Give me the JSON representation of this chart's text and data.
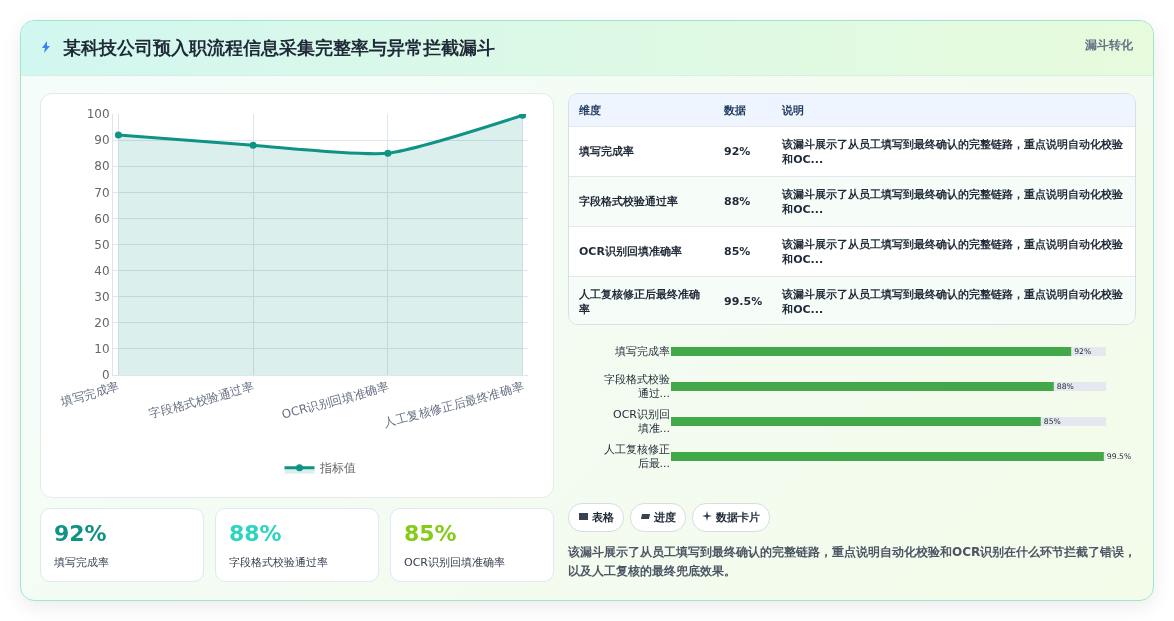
{
  "chart_data": [
    {
      "type": "area",
      "title": "某科技公司预入职流程信息采集完整率与异常拦截漏斗",
      "annotations": [
        "漏斗转化"
      ],
      "categories": [
        "填写完成率",
        "字段格式校验通过率",
        "OCR识别回填准确率",
        "人工复核修正后最终准确率"
      ],
      "series": [
        {
          "name": "指标值",
          "color": "#0e9384",
          "values": [
            92,
            88,
            85,
            99.5
          ]
        }
      ],
      "ylim": [
        0,
        100
      ],
      "yticks": [
        0,
        10,
        20,
        30,
        40,
        50,
        60,
        70,
        80,
        90,
        100
      ],
      "grid": true,
      "legend": "bottom",
      "marker": "circle",
      "line_style": "solid"
    },
    {
      "type": "other",
      "annotations": [
        "维度",
        "数据",
        "说明",
        "该漏斗展示了从员工填写到最终确认的完整链路，重点说明自动化校验和OC...",
        "该漏斗展示了从员工填写到最终确认的完整链路，重点说明自动化校验和OC...",
        "该漏斗展示了从员工填写到最终确认的完整链路，重点说明自动化校验和OC...",
        "该漏斗展示了从员工填写到最终确认的完整链路，重点说明自动化校验和OC..."
      ],
      "categories": [
        "填写完成率",
        "字段格式校验通过率",
        "OCR识别回填准确率",
        "人工复核修正后最终准确率"
      ],
      "value_labels": [
        "92%",
        "88%",
        "85%",
        "99.5%"
      ]
    },
    {
      "type": "bar",
      "orientation": "horizontal",
      "categories": [
        "填写完成率",
        "字段格式校验通过...",
        "OCR识别回填准...",
        "人工复核修正后最..."
      ],
      "values": [
        92,
        88,
        85,
        99.5
      ],
      "value_labels": [
        "92%",
        "88%",
        "85%",
        "99.5%"
      ],
      "color": "#43a84a",
      "xlim": [
        0,
        100
      ],
      "tick_labels": "y"
    },
    {
      "type": "other",
      "categories": [
        "填写完成率",
        "字段格式校验通过率",
        "OCR识别回填准确率"
      ],
      "value_labels": [
        "92%",
        "88%",
        "85%"
      ]
    },
    {
      "type": "other",
      "annotations": [
        "表格",
        "进度",
        "数据卡片",
        "该漏斗展示了从员工填写到最终确认的完整链路，重点说明自动化校验和OCR识别在什么环节拦截了错误，以及人工复核的最终兜底效果。"
      ]
    }
  ]
}
